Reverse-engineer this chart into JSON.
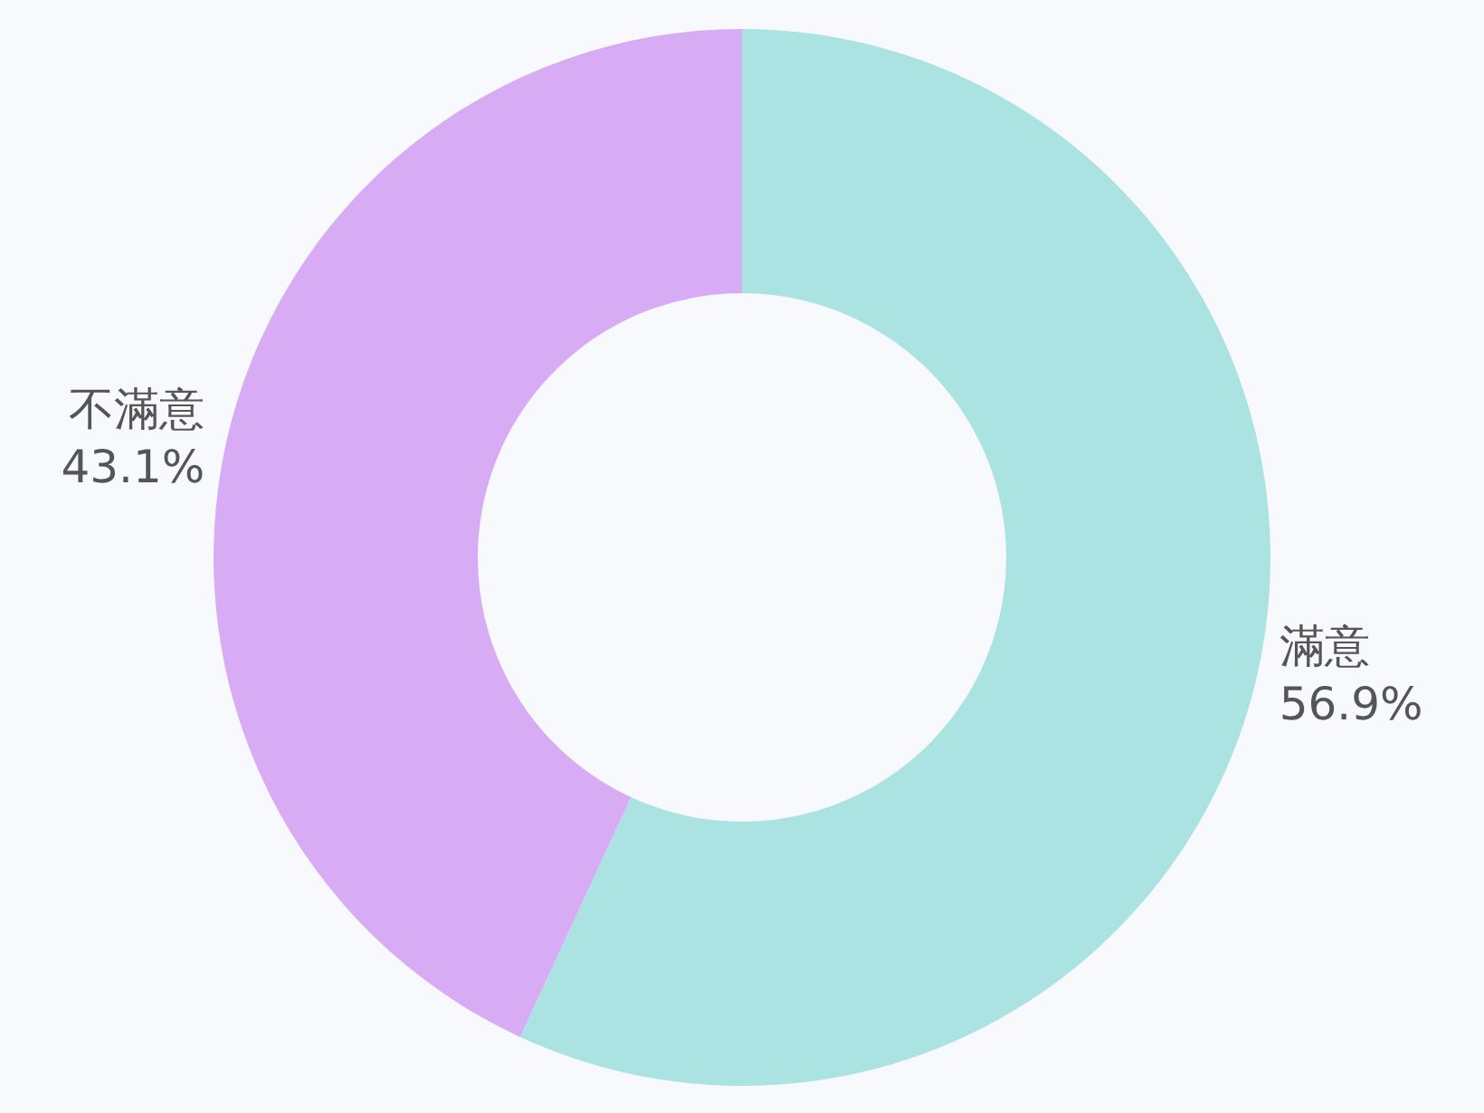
{
  "chart_data": {
    "type": "donut",
    "categories": [
      "滿意",
      "不滿意"
    ],
    "values": [
      56.9,
      43.1
    ],
    "colors": [
      "#aae3e1",
      "#d8acf5"
    ],
    "value_labels": [
      "56.9%",
      "43.1%"
    ]
  }
}
